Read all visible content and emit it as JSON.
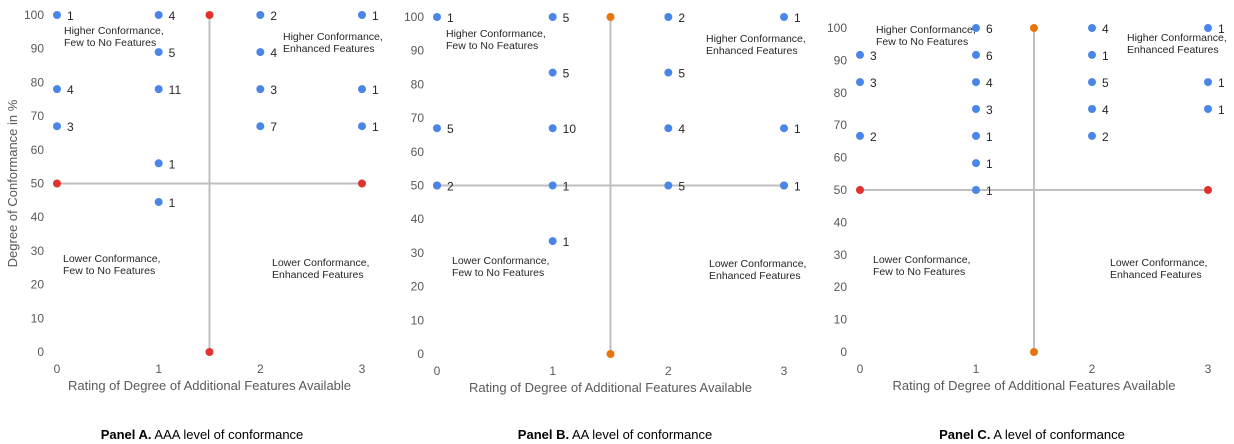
{
  "colors": {
    "data_point": "#4a86e8",
    "divider_end": "#e0332e",
    "divider_end_b": "#e8750c",
    "divider_line": "#bfbfbf",
    "axis_text": "#595959"
  },
  "chart_data": [
    {
      "type": "scatter",
      "panel": "A",
      "xlabel": "Rating of Degree of Additional Features Available",
      "ylabel": "Degree of Conformance in %",
      "xlim": [
        0,
        3
      ],
      "ylim": [
        0,
        100
      ],
      "xticks": [
        "0",
        "1",
        "2",
        "3"
      ],
      "yticks": [
        "0",
        "10",
        "20",
        "30",
        "40",
        "50",
        "60",
        "70",
        "80",
        "90",
        "100"
      ],
      "caption": {
        "bold": "Panel A.",
        "text": " AAA level of conformance"
      },
      "quadrants": {
        "top_left": [
          "Higher Conformance,",
          "Few to No Features"
        ],
        "top_right": [
          "Higher Conformance,",
          "Enhanced Features"
        ],
        "bottom_left": [
          "Lower Conformance,",
          "Few to No Features"
        ],
        "bottom_right": [
          "Lower Conformance,",
          "Enhanced Features"
        ]
      },
      "divider_x": 1.5,
      "divider_y": 50,
      "points": [
        {
          "x": 0,
          "y": 100,
          "label": "1"
        },
        {
          "x": 0,
          "y": 78,
          "label": "4"
        },
        {
          "x": 0,
          "y": 67,
          "label": "3"
        },
        {
          "x": 1,
          "y": 100,
          "label": "4"
        },
        {
          "x": 1,
          "y": 89,
          "label": "5"
        },
        {
          "x": 1,
          "y": 78,
          "label": "11"
        },
        {
          "x": 1,
          "y": 56,
          "label": "1"
        },
        {
          "x": 1,
          "y": 44.5,
          "label": "1"
        },
        {
          "x": 2,
          "y": 100,
          "label": "2"
        },
        {
          "x": 2,
          "y": 89,
          "label": "4"
        },
        {
          "x": 2,
          "y": 78,
          "label": "3"
        },
        {
          "x": 2,
          "y": 67,
          "label": "7"
        },
        {
          "x": 3,
          "y": 100,
          "label": "1"
        },
        {
          "x": 3,
          "y": 78,
          "label": "1"
        },
        {
          "x": 3,
          "y": 67,
          "label": "1"
        }
      ]
    },
    {
      "type": "scatter",
      "panel": "B",
      "xlabel": "Rating of Degree of Additional Features Available",
      "ylabel": "",
      "xlim": [
        0,
        3
      ],
      "ylim": [
        0,
        100
      ],
      "xticks": [
        "0",
        "1",
        "2",
        "3"
      ],
      "yticks": [
        "0",
        "10",
        "20",
        "30",
        "40",
        "50",
        "60",
        "70",
        "80",
        "90",
        "100"
      ],
      "caption": {
        "bold": "Panel B.",
        "text": " AA level of conformance"
      },
      "quadrants": {
        "top_left": [
          "Higher Conformance,",
          "Few to No Features"
        ],
        "top_right": [
          "Higher Conformance,",
          "Enhanced Features"
        ],
        "bottom_left": [
          "Lower Conformance,",
          "Few to No Features"
        ],
        "bottom_right": [
          "Lower Conformance,",
          "Enhanced Features"
        ]
      },
      "divider_x": 1.5,
      "divider_y": 50,
      "points": [
        {
          "x": 0,
          "y": 100,
          "label": "1"
        },
        {
          "x": 0,
          "y": 67,
          "label": "5"
        },
        {
          "x": 0,
          "y": 50,
          "label": "2"
        },
        {
          "x": 1,
          "y": 100,
          "label": "5"
        },
        {
          "x": 1,
          "y": 83.5,
          "label": "5"
        },
        {
          "x": 1,
          "y": 67,
          "label": "10"
        },
        {
          "x": 1,
          "y": 50,
          "label": "1"
        },
        {
          "x": 1,
          "y": 33.5,
          "label": "1"
        },
        {
          "x": 2,
          "y": 100,
          "label": "2"
        },
        {
          "x": 2,
          "y": 83.5,
          "label": "5"
        },
        {
          "x": 2,
          "y": 67,
          "label": "4"
        },
        {
          "x": 2,
          "y": 50,
          "label": "5"
        },
        {
          "x": 3,
          "y": 100,
          "label": "1"
        },
        {
          "x": 3,
          "y": 67,
          "label": "1"
        },
        {
          "x": 3,
          "y": 50,
          "label": "1"
        }
      ]
    },
    {
      "type": "scatter",
      "panel": "C",
      "xlabel": "Rating of Degree of Additional Features Available",
      "ylabel": "",
      "xlim": [
        0,
        3
      ],
      "ylim": [
        0,
        100
      ],
      "xticks": [
        "0",
        "1",
        "2",
        "3"
      ],
      "yticks": [
        "0",
        "10",
        "20",
        "30",
        "40",
        "50",
        "60",
        "70",
        "80",
        "90",
        "100"
      ],
      "caption": {
        "bold": "Panel C.",
        "text": " A level of conformance"
      },
      "quadrants": {
        "top_left": [
          "Higher Conformance,",
          "Few to No Features"
        ],
        "top_right": [
          "Higher Conformance,",
          "Enhanced Features"
        ],
        "bottom_left": [
          "Lower Conformance,",
          "Few to No Features"
        ],
        "bottom_right": [
          "Lower Conformance,",
          "Enhanced Features"
        ]
      },
      "divider_x": 1.5,
      "divider_y": 50,
      "points": [
        {
          "x": 0,
          "y": 91.7,
          "label": "3"
        },
        {
          "x": 0,
          "y": 83.3,
          "label": "3"
        },
        {
          "x": 0,
          "y": 66.7,
          "label": "2"
        },
        {
          "x": 1,
          "y": 100,
          "label": "6"
        },
        {
          "x": 1,
          "y": 91.7,
          "label": "6"
        },
        {
          "x": 1,
          "y": 83.3,
          "label": "4"
        },
        {
          "x": 1,
          "y": 75,
          "label": "3"
        },
        {
          "x": 1,
          "y": 66.7,
          "label": "1"
        },
        {
          "x": 1,
          "y": 58.3,
          "label": "1"
        },
        {
          "x": 1,
          "y": 50,
          "label": "1"
        },
        {
          "x": 2,
          "y": 100,
          "label": "4"
        },
        {
          "x": 2,
          "y": 91.7,
          "label": "1"
        },
        {
          "x": 2,
          "y": 83.3,
          "label": "5"
        },
        {
          "x": 2,
          "y": 75,
          "label": "4"
        },
        {
          "x": 2,
          "y": 66.7,
          "label": "2"
        },
        {
          "x": 3,
          "y": 100,
          "label": "1"
        },
        {
          "x": 3,
          "y": 83.3,
          "label": "1"
        },
        {
          "x": 3,
          "y": 75,
          "label": "1"
        }
      ]
    }
  ]
}
